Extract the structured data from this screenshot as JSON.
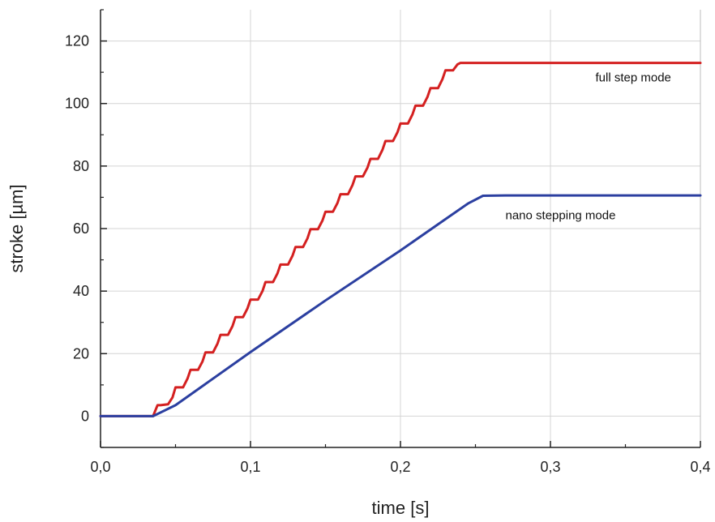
{
  "chart_data": {
    "type": "line",
    "title": "",
    "xlabel": "time [s]",
    "ylabel": "stroke [µm]",
    "xlim": [
      0.0,
      0.4
    ],
    "ylim": [
      -10,
      130
    ],
    "x_ticks": [
      0.0,
      0.1,
      0.2,
      0.3,
      0.4
    ],
    "x_tick_labels": [
      "0,0",
      "0,1",
      "0,2",
      "0,3",
      "0,4"
    ],
    "y_ticks": [
      0,
      20,
      40,
      60,
      80,
      100,
      120
    ],
    "y_tick_labels": [
      "0",
      "20",
      "40",
      "60",
      "80",
      "100",
      "120"
    ],
    "grid": true,
    "legend": "none",
    "series": [
      {
        "name": "full step mode",
        "color": "#d42020",
        "x": [
          0.0,
          0.035,
          0.038,
          0.04,
          0.045,
          0.048,
          0.05,
          0.055,
          0.058,
          0.06,
          0.065,
          0.068,
          0.07,
          0.075,
          0.078,
          0.08,
          0.085,
          0.088,
          0.09,
          0.095,
          0.098,
          0.1,
          0.105,
          0.108,
          0.11,
          0.115,
          0.118,
          0.12,
          0.125,
          0.128,
          0.13,
          0.135,
          0.138,
          0.14,
          0.145,
          0.148,
          0.15,
          0.155,
          0.158,
          0.16,
          0.165,
          0.168,
          0.17,
          0.175,
          0.178,
          0.18,
          0.185,
          0.188,
          0.19,
          0.195,
          0.198,
          0.2,
          0.205,
          0.208,
          0.21,
          0.215,
          0.218,
          0.22,
          0.225,
          0.228,
          0.23,
          0.235,
          0.238,
          0.24,
          0.245,
          0.248,
          0.25,
          0.255,
          0.258,
          0.26,
          0.265,
          0.268,
          0.27,
          0.275,
          0.278,
          0.28,
          0.285,
          0.288,
          0.29,
          0.295,
          0.298,
          0.3,
          0.305,
          0.308,
          0.31,
          0.315,
          0.318,
          0.32,
          0.325,
          0.328,
          0.33,
          0.4
        ],
        "values": [
          0,
          0,
          3.5,
          3.5,
          3.8,
          6.0,
          9.2,
          9.2,
          12.0,
          14.8,
          14.8,
          17.5,
          20.4,
          20.4,
          23.2,
          26.0,
          26.0,
          28.8,
          31.7,
          31.7,
          34.5,
          37.3,
          37.3,
          40.0,
          42.9,
          42.9,
          45.7,
          48.5,
          48.5,
          51.3,
          54.1,
          54.1,
          56.9,
          59.8,
          59.8,
          62.6,
          65.4,
          65.4,
          68.2,
          71.0,
          71.0,
          73.9,
          76.7,
          76.7,
          79.5,
          82.3,
          82.3,
          85.2,
          88.0,
          88.0,
          90.8,
          93.6,
          93.6,
          96.5,
          99.3,
          99.3,
          102.1,
          104.9,
          104.9,
          107.8,
          110.6,
          110.6,
          112.5,
          113.0,
          113.0,
          113.0,
          113.0,
          113.0,
          113.0,
          113.0,
          113.0,
          113.0,
          113.0,
          113.0,
          113.0,
          113.0,
          113.0,
          113.0,
          113.0,
          113.0,
          113.0,
          113.0,
          113.0,
          113.0,
          113.0,
          113.0,
          113.0,
          113.0,
          113.0,
          113.0,
          113.0,
          113.0
        ]
      },
      {
        "name": "nano stepping mode",
        "color": "#2b3fa0",
        "x": [
          0.0,
          0.035,
          0.05,
          0.1,
          0.15,
          0.2,
          0.23,
          0.245,
          0.255,
          0.27,
          0.4
        ],
        "values": [
          0,
          0,
          3.5,
          20.5,
          37.0,
          53.0,
          63.0,
          68.0,
          70.5,
          70.6,
          70.6
        ]
      }
    ],
    "annotations": [
      {
        "text": "full step mode",
        "x": 0.33,
        "y": 107
      },
      {
        "text": "nano stepping mode",
        "x": 0.27,
        "y": 63
      }
    ]
  }
}
